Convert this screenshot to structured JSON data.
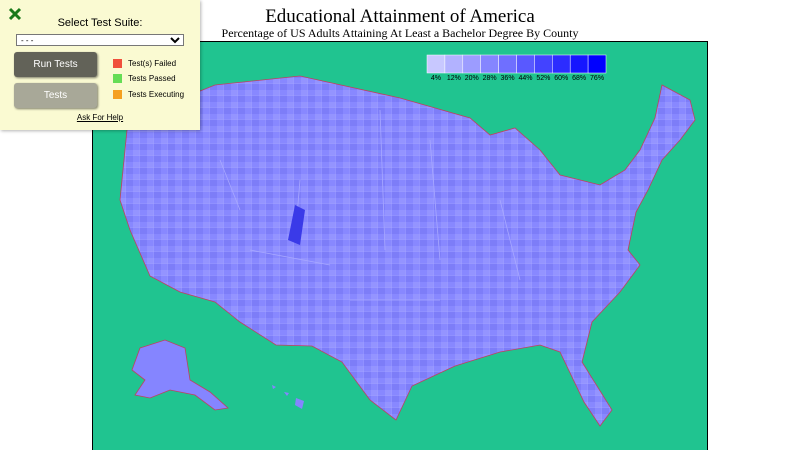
{
  "panel": {
    "title": "Select Test Suite:",
    "select": "- - -",
    "buttons": [
      "Run Tests",
      "Tests"
    ],
    "status": [
      "Test(s) Failed",
      "Tests Passed",
      "Tests Executing"
    ],
    "help": "Ask For Help"
  },
  "map": {
    "title": "Educational Attainment of America",
    "subtitle": "Percentage of US Adults Attaining At Least a Bachelor Degree By County",
    "legend": [
      "4%",
      "12%",
      "20%",
      "28%",
      "36%",
      "44%",
      "52%",
      "60%",
      "68%",
      "76%"
    ]
  }
}
